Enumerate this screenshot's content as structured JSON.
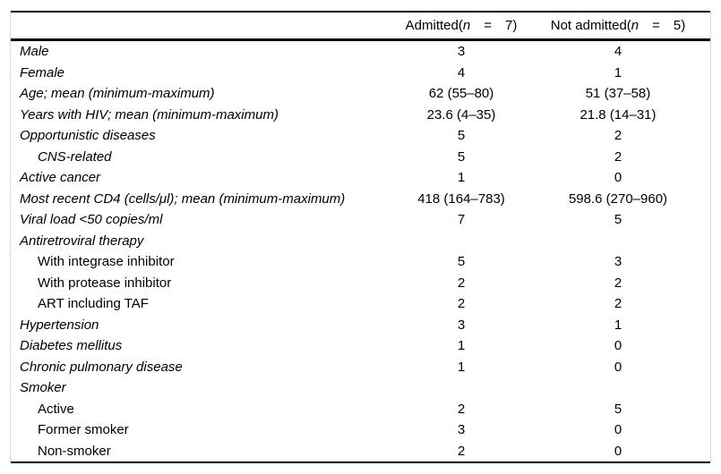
{
  "table": {
    "header": {
      "admitted": {
        "pre": "Admitted(",
        "n": "n",
        "post": "  =  7)"
      },
      "not_admitted": {
        "pre": "Not admitted(",
        "n": "n",
        "post": "  =  5)"
      }
    },
    "rows": [
      {
        "label": "Male",
        "admitted": "3",
        "not_admitted": "4"
      },
      {
        "label": "Female",
        "admitted": "4",
        "not_admitted": "1"
      },
      {
        "label": "Age; mean (minimum-maximum)",
        "admitted": "62 (55–80)",
        "not_admitted": "51 (37–58)"
      },
      {
        "label": "Years with HIV; mean (minimum-maximum)",
        "admitted": "23.6 (4–35)",
        "not_admitted": "21.8 (14–31)"
      },
      {
        "label": "Opportunistic diseases",
        "admitted": "5",
        "not_admitted": "2"
      },
      {
        "label": "CNS-related",
        "admitted": "5",
        "not_admitted": "2"
      },
      {
        "label": "Active cancer",
        "admitted": "1",
        "not_admitted": "0"
      },
      {
        "label": "Most recent CD4 (cells/μl); mean (minimum-maximum)",
        "admitted": "418 (164–783)",
        "not_admitted": "598.6 (270–960)"
      },
      {
        "label": "Viral load <50 copies/ml",
        "admitted": "7",
        "not_admitted": "5"
      },
      {
        "label": "Antiretroviral therapy",
        "admitted": "",
        "not_admitted": ""
      },
      {
        "label": "With integrase inhibitor",
        "admitted": "5",
        "not_admitted": "3"
      },
      {
        "label": "With protease inhibitor",
        "admitted": "2",
        "not_admitted": "2"
      },
      {
        "label": "ART including TAF",
        "admitted": "2",
        "not_admitted": "2"
      },
      {
        "label": "Hypertension",
        "admitted": "3",
        "not_admitted": "1"
      },
      {
        "label": "Diabetes mellitus",
        "admitted": "1",
        "not_admitted": "0"
      },
      {
        "label": "Chronic pulmonary disease",
        "admitted": "1",
        "not_admitted": "0"
      },
      {
        "label": "Smoker",
        "admitted": "",
        "not_admitted": ""
      },
      {
        "label": "Active",
        "admitted": "2",
        "not_admitted": "5"
      },
      {
        "label": "Former smoker",
        "admitted": "3",
        "not_admitted": "0"
      },
      {
        "label": "Non-smoker",
        "admitted": "2",
        "not_admitted": "0"
      }
    ]
  }
}
